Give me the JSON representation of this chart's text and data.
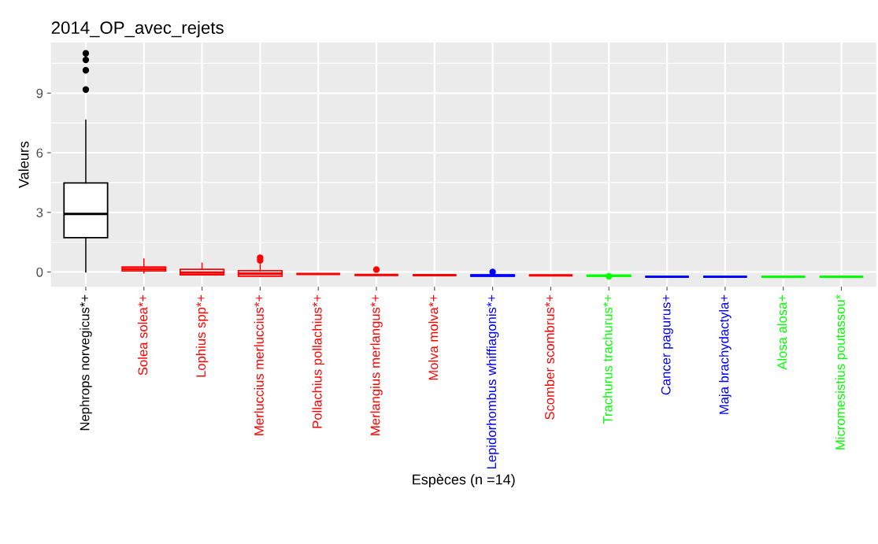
{
  "chart_data": {
    "type": "box",
    "title": "2014_OP_avec_rejets",
    "xlabel": "Espèces (n =14)",
    "ylabel": "Valeurs",
    "categories": [
      "Nephrops norvegicus*+",
      "Solea solea*+",
      "Lophius spp*+",
      "Merluccius merluccius*+",
      "Pollachius pollachius*+",
      "Merlangius merlangus*+",
      "Molva molva*+",
      "Lepidorhombus whiffiagonis*+",
      "Scomber scombrus*+",
      "Trachurus trachurus*+",
      "Cancer pagurus+",
      "Maja brachydactyla+",
      "Alosa alosa+",
      "Micromesistius poutassou*"
    ],
    "colors": [
      "#000000",
      "#ff0000",
      "#ff0000",
      "#ff0000",
      "#ff0000",
      "#ff0000",
      "#ff0000",
      "#0000ff",
      "#ff0000",
      "#00ff00",
      "#0000ff",
      "#0000ff",
      "#00ff00",
      "#00ff00"
    ],
    "boxes": [
      {
        "low": 0,
        "q1": 1.73,
        "median": 2.92,
        "q3": 4.48,
        "high": 7.64,
        "outliers": [
          9.18,
          10.15,
          10.67,
          11.0
        ]
      },
      {
        "low": -0.05,
        "q1": 0.05,
        "median": 0.15,
        "q3": 0.25,
        "high": 0.65
      },
      {
        "low": -0.14,
        "q1": -0.14,
        "median": -0.03,
        "q3": 0.13,
        "high": 0.44
      },
      {
        "low": -0.21,
        "q1": -0.21,
        "median": -0.08,
        "q3": 0.06,
        "high": 0.37,
        "outliers": [
          0.58,
          0.72
        ]
      },
      {
        "low": -0.1,
        "q1": -0.1,
        "median": -0.1,
        "q3": -0.1,
        "high": -0.1
      },
      {
        "low": -0.15,
        "q1": -0.15,
        "median": -0.15,
        "q3": -0.15,
        "high": -0.15,
        "outliers": [
          0.12
        ]
      },
      {
        "low": -0.16,
        "q1": -0.16,
        "median": -0.16,
        "q3": -0.16,
        "high": -0.16
      },
      {
        "low": -0.21,
        "q1": -0.21,
        "median": -0.18,
        "q3": -0.15,
        "high": -0.15,
        "outliers": [
          0.0
        ]
      },
      {
        "low": -0.17,
        "q1": -0.17,
        "median": -0.17,
        "q3": -0.17,
        "high": -0.17
      },
      {
        "low": -0.21,
        "q1": -0.21,
        "median": -0.19,
        "q3": -0.17,
        "high": -0.17,
        "outliers": [
          -0.22
        ]
      },
      {
        "low": -0.24,
        "q1": -0.24,
        "median": -0.24,
        "q3": -0.24,
        "high": -0.24
      },
      {
        "low": -0.24,
        "q1": -0.24,
        "median": -0.24,
        "q3": -0.24,
        "high": -0.24
      },
      {
        "low": -0.24,
        "q1": -0.24,
        "median": -0.24,
        "q3": -0.24,
        "high": -0.24
      },
      {
        "low": -0.24,
        "q1": -0.24,
        "median": -0.24,
        "q3": -0.24,
        "high": -0.24
      }
    ],
    "ylim": [
      -0.74,
      11.55
    ],
    "yticks": [
      0,
      3,
      6,
      9
    ],
    "grid": true
  }
}
